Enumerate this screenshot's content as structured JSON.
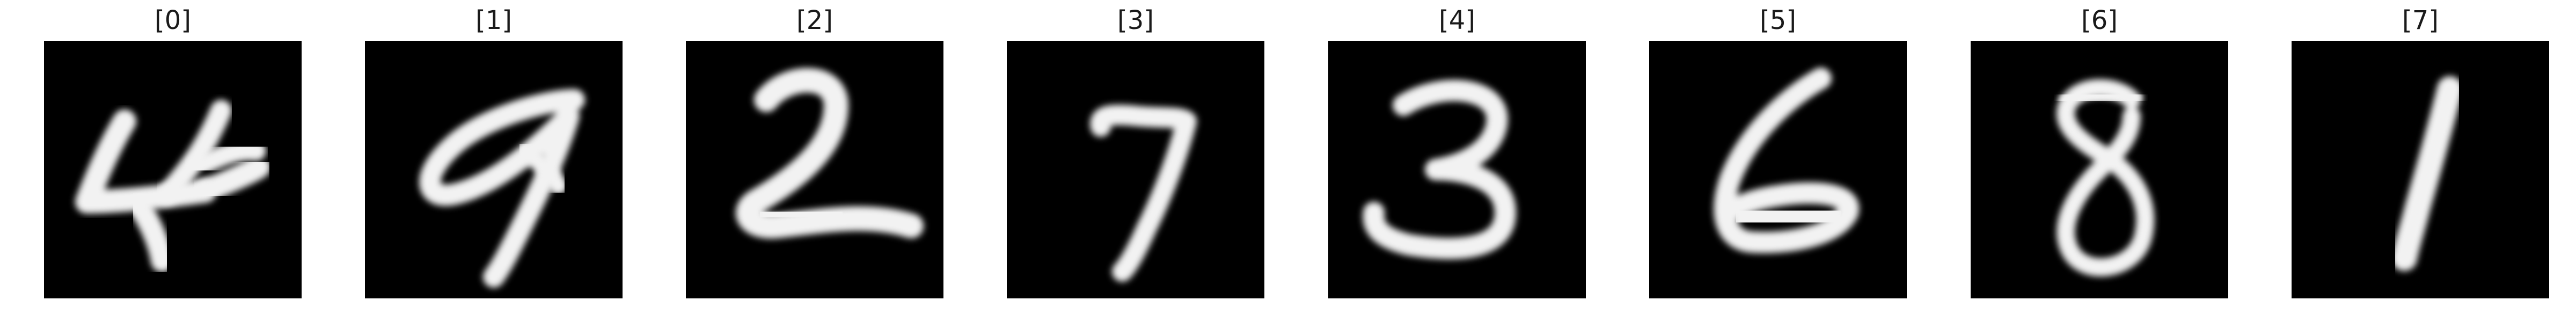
{
  "panels": [
    {
      "title": "[0]",
      "digit": "4",
      "icon": "handwritten-digit-4"
    },
    {
      "title": "[1]",
      "digit": "9",
      "icon": "handwritten-digit-9"
    },
    {
      "title": "[2]",
      "digit": "2",
      "icon": "handwritten-digit-2"
    },
    {
      "title": "[3]",
      "digit": "7",
      "icon": "handwritten-digit-7"
    },
    {
      "title": "[4]",
      "digit": "3",
      "icon": "handwritten-digit-3"
    },
    {
      "title": "[5]",
      "digit": "6",
      "icon": "handwritten-digit-6"
    },
    {
      "title": "[6]",
      "digit": "8",
      "icon": "handwritten-digit-8"
    },
    {
      "title": "[7]",
      "digit": "1",
      "icon": "handwritten-digit-1"
    }
  ],
  "colors": {
    "background": "#ffffff",
    "image_background": "#000000",
    "ink": "#f2f2f2",
    "title_text": "#1a1a1a"
  }
}
